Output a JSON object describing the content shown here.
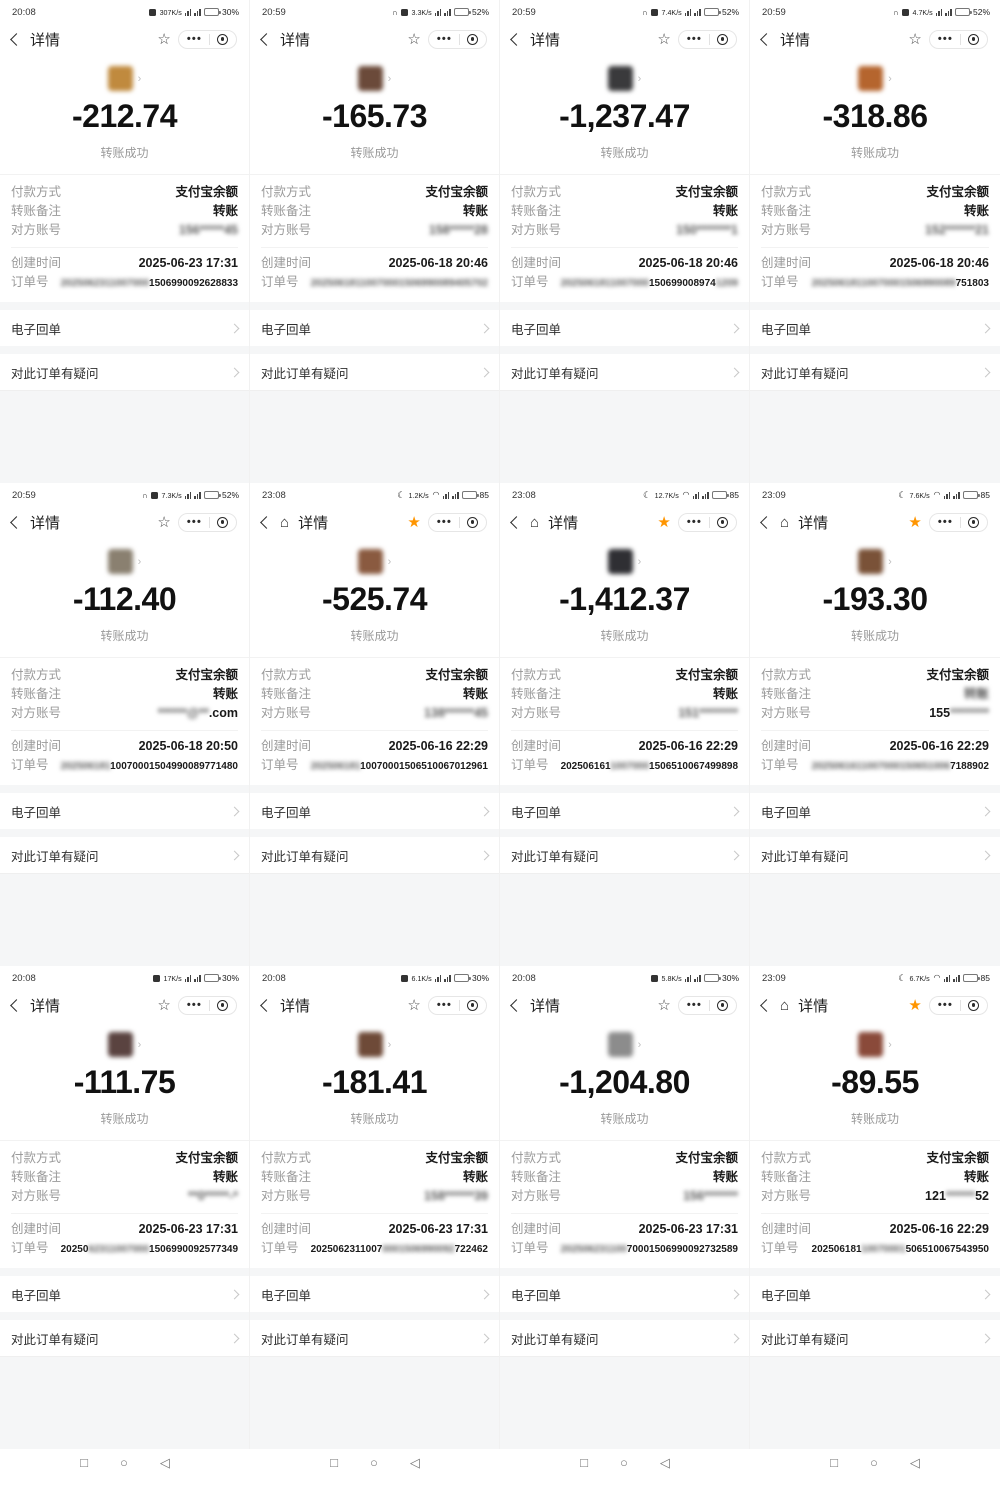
{
  "labels": {
    "detail_title": "详情",
    "transfer_status": "转账成功",
    "payment_method_label": "付款方式",
    "payment_method_value": "支付宝余额",
    "remark_label": "转账备注",
    "account_label": "对方账号",
    "created_label": "创建时间",
    "order_label": "订单号",
    "receipt_link": "电子回单",
    "question_link": "对此订单有疑问"
  },
  "colors": {
    "accent_star": "#ff9500",
    "text_primary": "#1a1a1a",
    "text_secondary": "#9a9a9a",
    "page_bg": "#f5f6f7"
  },
  "android_nav": {
    "recents": "□",
    "home": "○",
    "back": "◁"
  },
  "cells": [
    {
      "time": "20:08",
      "net_speed": "307K/s",
      "battery": "30%",
      "battery_pct": 30,
      "has_moon": false,
      "has_headset": false,
      "has_mute": true,
      "has_wifi": false,
      "has_home": false,
      "star_filled": false,
      "avatar_color": "#c08a3e",
      "amount": "-212.74",
      "date": "2025-06-23 17:31",
      "remark_parts": [
        {
          "t": "转账",
          "b": false
        }
      ],
      "account_parts": [
        {
          "t": "156*****45",
          "b": true
        }
      ],
      "order_parts": [
        {
          "t": "2025062311007000",
          "b": true
        },
        {
          "t": "1506990092628833",
          "b": false
        }
      ]
    },
    {
      "time": "20:59",
      "net_speed": "3.3K/s",
      "battery": "52%",
      "battery_pct": 52,
      "has_moon": false,
      "has_headset": true,
      "has_mute": true,
      "has_wifi": false,
      "has_home": false,
      "star_filled": false,
      "avatar_color": "#6b4a3a",
      "amount": "-165.73",
      "date": "2025-06-18 20:46",
      "remark_parts": [
        {
          "t": "转账",
          "b": false
        }
      ],
      "account_parts": [
        {
          "t": "158*****28",
          "b": true
        }
      ],
      "order_parts": [
        {
          "t": "20250618110070001506990089405702",
          "b": true
        }
      ]
    },
    {
      "time": "20:59",
      "net_speed": "7.4K/s",
      "battery": "52%",
      "battery_pct": 52,
      "has_moon": false,
      "has_headset": true,
      "has_mute": true,
      "has_wifi": false,
      "has_home": false,
      "star_filled": false,
      "avatar_color": "#3a3a3c",
      "amount": "-1,237.47",
      "date": "2025-06-18 20:46",
      "remark_parts": [
        {
          "t": "转账",
          "b": false
        }
      ],
      "account_parts": [
        {
          "t": "150*******1",
          "b": true
        }
      ],
      "order_parts": [
        {
          "t": "2025061811007000",
          "b": true
        },
        {
          "t": "150699008974",
          "b": false
        },
        {
          "t": "1209",
          "b": true
        }
      ]
    },
    {
      "time": "20:59",
      "net_speed": "4.7K/s",
      "battery": "52%",
      "battery_pct": 52,
      "has_moon": false,
      "has_headset": true,
      "has_mute": true,
      "has_wifi": false,
      "has_home": false,
      "star_filled": false,
      "avatar_color": "#b5652e",
      "amount": "-318.86",
      "date": "2025-06-18 20:46",
      "remark_parts": [
        {
          "t": "转账",
          "b": false
        }
      ],
      "account_parts": [
        {
          "t": "152******21",
          "b": true
        }
      ],
      "order_parts": [
        {
          "t": "20250618110070001506990089",
          "b": true
        },
        {
          "t": "751803",
          "b": false
        }
      ]
    },
    {
      "time": "20:59",
      "net_speed": "7.3K/s",
      "battery": "52%",
      "battery_pct": 52,
      "has_moon": false,
      "has_headset": true,
      "has_mute": true,
      "has_wifi": false,
      "has_home": false,
      "star_filled": false,
      "avatar_color": "#8a8070",
      "amount": "-112.40",
      "date": "2025-06-18 20:50",
      "remark_parts": [
        {
          "t": "转账",
          "b": false
        }
      ],
      "account_parts": [
        {
          "t": "******@**",
          "b": true
        },
        {
          "t": ".com",
          "b": false
        }
      ],
      "order_parts": [
        {
          "t": "202506181",
          "b": true
        },
        {
          "t": "10070001504990089771480",
          "b": false
        }
      ]
    },
    {
      "time": "23:08",
      "net_speed": "1.2K/s",
      "battery": "85",
      "battery_pct": 85,
      "has_moon": true,
      "has_headset": false,
      "has_mute": false,
      "has_wifi": true,
      "has_home": true,
      "star_filled": true,
      "avatar_color": "#8a5a40",
      "amount": "-525.74",
      "date": "2025-06-16 22:29",
      "remark_parts": [
        {
          "t": "转账",
          "b": false
        }
      ],
      "account_parts": [
        {
          "t": "138******45",
          "b": true
        }
      ],
      "order_parts": [
        {
          "t": "202506181",
          "b": true
        },
        {
          "t": "10070001506510067012961",
          "b": false
        }
      ]
    },
    {
      "time": "23:08",
      "net_speed": "12.7K/s",
      "battery": "85",
      "battery_pct": 85,
      "has_moon": true,
      "has_headset": false,
      "has_mute": false,
      "has_wifi": true,
      "has_home": true,
      "star_filled": true,
      "avatar_color": "#2f2f33",
      "amount": "-1,412.37",
      "date": "2025-06-16 22:29",
      "remark_parts": [
        {
          "t": "转账",
          "b": false
        }
      ],
      "account_parts": [
        {
          "t": "151********",
          "b": true
        }
      ],
      "order_parts": [
        {
          "t": "202506161",
          "b": false
        },
        {
          "t": "1007000",
          "b": true
        },
        {
          "t": "1506510067499898",
          "b": false
        }
      ]
    },
    {
      "time": "23:09",
      "net_speed": "7.6K/s",
      "battery": "85",
      "battery_pct": 85,
      "has_moon": true,
      "has_headset": false,
      "has_mute": false,
      "has_wifi": true,
      "has_home": true,
      "star_filled": true,
      "avatar_color": "#7a5238",
      "amount": "-193.30",
      "date": "2025-06-16 22:29",
      "remark_parts": [
        {
          "t": "转账",
          "b": true
        }
      ],
      "account_parts": [
        {
          "t": "155",
          "b": false
        },
        {
          "t": "********",
          "b": true
        }
      ],
      "order_parts": [
        {
          "t": "2025061611007000150651006",
          "b": true
        },
        {
          "t": "7188902",
          "b": false
        }
      ]
    },
    {
      "time": "20:08",
      "net_speed": "17K/s",
      "battery": "30%",
      "battery_pct": 30,
      "has_moon": false,
      "has_headset": false,
      "has_mute": true,
      "has_wifi": false,
      "has_home": false,
      "star_filled": false,
      "avatar_color": "#5a4340",
      "amount": "-111.75",
      "date": "2025-06-23 17:31",
      "remark_parts": [
        {
          "t": "转账",
          "b": false
        }
      ],
      "account_parts": [
        {
          "t": "**0*****-*",
          "b": true
        }
      ],
      "order_parts": [
        {
          "t": "20250",
          "b": false
        },
        {
          "t": "62311007000",
          "b": true
        },
        {
          "t": "1506990092577349",
          "b": false
        }
      ]
    },
    {
      "time": "20:08",
      "net_speed": "6.1K/s",
      "battery": "30%",
      "battery_pct": 30,
      "has_moon": false,
      "has_headset": false,
      "has_mute": true,
      "has_wifi": false,
      "has_home": false,
      "star_filled": false,
      "avatar_color": "#6e4a38",
      "amount": "-181.41",
      "date": "2025-06-23 17:31",
      "remark_parts": [
        {
          "t": "转账",
          "b": false
        }
      ],
      "account_parts": [
        {
          "t": "158******39",
          "b": true
        }
      ],
      "order_parts": [
        {
          "t": "2025062311007",
          "b": false
        },
        {
          "t": "0001506990092",
          "b": true
        },
        {
          "t": "722462",
          "b": false
        }
      ]
    },
    {
      "time": "20:08",
      "net_speed": "5.8K/s",
      "battery": "30%",
      "battery_pct": 30,
      "has_moon": false,
      "has_headset": false,
      "has_mute": true,
      "has_wifi": false,
      "has_home": false,
      "star_filled": false,
      "avatar_color": "#8c8c8c",
      "amount": "-1,204.80",
      "date": "2025-06-23 17:31",
      "remark_parts": [
        {
          "t": "转账",
          "b": false
        }
      ],
      "account_parts": [
        {
          "t": "156*******",
          "b": true
        }
      ],
      "order_parts": [
        {
          "t": "202506231100",
          "b": true
        },
        {
          "t": "70001506990092732589",
          "b": false
        }
      ]
    },
    {
      "time": "23:09",
      "net_speed": "6.7K/s",
      "battery": "85",
      "battery_pct": 85,
      "has_moon": true,
      "has_headset": false,
      "has_mute": false,
      "has_wifi": true,
      "has_home": true,
      "star_filled": true,
      "avatar_color": "#8a4a3a",
      "amount": "-89.55",
      "date": "2025-06-16 22:29",
      "remark_parts": [
        {
          "t": "转账",
          "b": false
        }
      ],
      "account_parts": [
        {
          "t": "121",
          "b": false
        },
        {
          "t": "******",
          "b": true
        },
        {
          "t": "52",
          "b": false
        }
      ],
      "order_parts": [
        {
          "t": "202506181",
          "b": false
        },
        {
          "t": "10070001",
          "b": true
        },
        {
          "t": "506510067543950",
          "b": false
        }
      ]
    }
  ]
}
